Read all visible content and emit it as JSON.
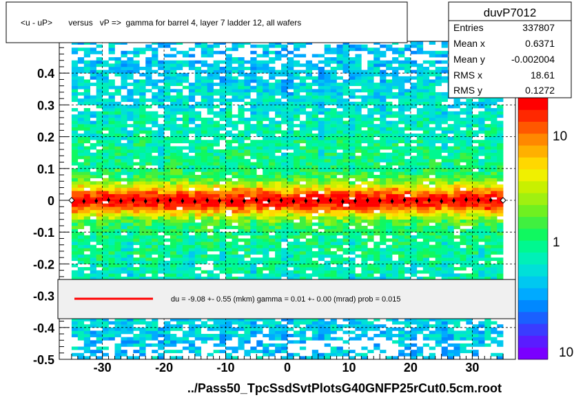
{
  "chart_data": {
    "type": "heatmap",
    "title": "<u - uP>       versus   vP =>  gamma for barrel 4, layer 7 ladder 12, all wafers",
    "xlabel": "../Pass50_TpcSsdSvtPlotsG40GNFP25rCut0.5cm.root",
    "ylabel": "",
    "xlim": [
      -37,
      37
    ],
    "ylim": [
      -0.5,
      0.5
    ],
    "x_ticks": [
      -30,
      -20,
      -10,
      0,
      10,
      20,
      30
    ],
    "y_ticks": [
      -0.5,
      -0.4,
      -0.3,
      -0.2,
      -0.1,
      0,
      0.1,
      0.2,
      0.3,
      0.4
    ],
    "y_tick_labels": [
      "-0.5",
      "-0.4",
      "-0.3",
      "-0.2",
      "-0.1",
      "0",
      "0.1",
      "0.2",
      "0.3",
      "0.4"
    ],
    "grid": true,
    "color_scale": "log",
    "colorbar_labels": [
      "10",
      "1",
      "10"
    ],
    "stats": {
      "name": "duvP7012",
      "rows": [
        {
          "label": "Entries",
          "value": "337807"
        },
        {
          "label": "Mean x",
          "value": "0.6371"
        },
        {
          "label": "Mean y",
          "value": "-0.002004"
        },
        {
          "label": "RMS x",
          "value": "18.61"
        },
        {
          "label": "RMS y",
          "value": "0.1272"
        }
      ]
    },
    "fit_legend": "du =   -9.08 +-  0.55 (mkm) gamma =    0.01 +-  0.00 (mrad) prob = 0.015",
    "fit_color": "#ff0000",
    "profile": {
      "x": [
        -35,
        -33,
        -31,
        -29,
        -27,
        -25,
        -23,
        -21,
        -19,
        -17,
        -15,
        -13,
        -11,
        -9,
        -7,
        -5,
        -3,
        -1,
        1,
        3,
        5,
        7,
        9,
        11,
        13,
        15,
        17,
        19,
        21,
        23,
        25,
        27,
        29,
        31,
        33,
        35
      ],
      "y": [
        0.0,
        -0.003,
        -0.002,
        0.001,
        -0.002,
        0.0,
        -0.003,
        -0.001,
        0.0,
        -0.002,
        -0.004,
        0.0,
        -0.001,
        -0.003,
        -0.002,
        0.001,
        -0.002,
        0.0,
        -0.003,
        -0.002,
        -0.001,
        0.0,
        -0.004,
        -0.002,
        0.0,
        -0.001,
        -0.003,
        0.001,
        -0.002,
        0.0,
        -0.003,
        -0.001,
        0.002,
        0.0,
        0.001,
        0.0
      ]
    }
  }
}
